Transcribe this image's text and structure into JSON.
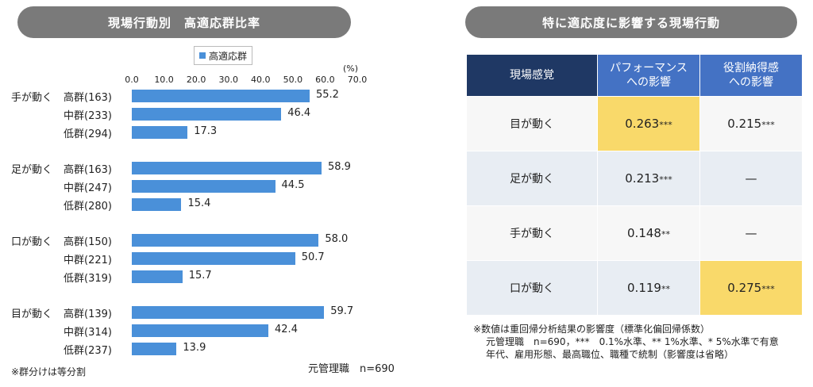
{
  "left_title": "現場行動別　高適応群比率",
  "right_title": "特に適応度に影響する現場行動",
  "chart_data": {
    "type": "bar",
    "orientation": "horizontal",
    "legend": "高適応群",
    "unit_label": "(%)",
    "xlim": [
      0,
      70
    ],
    "ticks": [
      "0.0",
      "10.0",
      "20.0",
      "30.0",
      "40.0",
      "50.0",
      "60.0",
      "70.0"
    ],
    "groups": [
      {
        "name": "手が動く",
        "rows": [
          {
            "label": "高群(163)",
            "value": 55.2
          },
          {
            "label": "中群(233)",
            "value": 46.4
          },
          {
            "label": "低群(294)",
            "value": 17.3
          }
        ]
      },
      {
        "name": "足が動く",
        "rows": [
          {
            "label": "高群(163)",
            "value": 58.9
          },
          {
            "label": "中群(247)",
            "value": 44.5
          },
          {
            "label": "低群(280)",
            "value": 15.4
          }
        ]
      },
      {
        "name": "口が動く",
        "rows": [
          {
            "label": "高群(150)",
            "value": 58.0
          },
          {
            "label": "中群(221)",
            "value": 50.7
          },
          {
            "label": "低群(319)",
            "value": 15.7
          }
        ]
      },
      {
        "name": "目が動く",
        "rows": [
          {
            "label": "高群(139)",
            "value": 59.7
          },
          {
            "label": "中群(314)",
            "value": 42.4
          },
          {
            "label": "低群(237)",
            "value": 13.9
          }
        ]
      }
    ],
    "bar_color": "#4a90d9"
  },
  "left_note": "※群分けは等分割",
  "left_n": "元管理職　n=690",
  "table": {
    "headers": [
      "現場感覚",
      "パフォーマンス\nへの影響",
      "役割納得感\nへの影響"
    ],
    "rows": [
      {
        "label": "目が動く",
        "c1": "0.263",
        "s1": "***",
        "c2": "0.215",
        "s2": "***",
        "hl1": true,
        "hl2": false
      },
      {
        "label": "足が動く",
        "c1": "0.213",
        "s1": "***",
        "c2": "—",
        "s2": "",
        "hl1": false,
        "hl2": false
      },
      {
        "label": "手が動く",
        "c1": "0.148",
        "s1": "**",
        "c2": "—",
        "s2": "",
        "hl1": false,
        "hl2": false
      },
      {
        "label": "口が動く",
        "c1": "0.119",
        "s1": "**",
        "c2": "0.275",
        "s2": "***",
        "hl1": false,
        "hl2": true
      }
    ],
    "highlight_color": "#f9d96a",
    "header_color": "#4472c4",
    "header_first_color": "#1f3864"
  },
  "right_notes": [
    "※数値は重回帰分析結果の影響度（標準化偏回帰係数）",
    "元管理職　n=690，***　0.1%水準、** 1%水準、* 5%水準で有意",
    "年代、雇用形態、最高職位、職種で統制（影響度は省略）"
  ]
}
